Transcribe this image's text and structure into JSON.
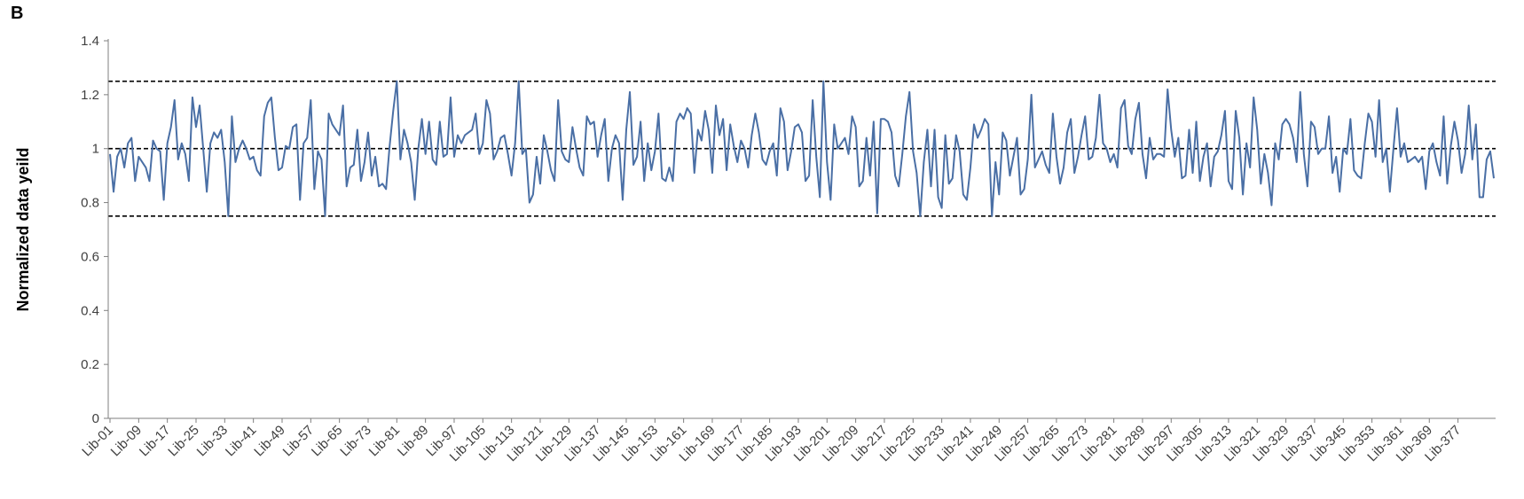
{
  "panel_label": "B",
  "chart_data": {
    "type": "line",
    "title": "",
    "xlabel": "",
    "ylabel": "Normalized data yeild",
    "ylim": [
      0,
      1.4
    ],
    "yticks": [
      0,
      0.2,
      0.4,
      0.6,
      0.8,
      1,
      1.2,
      1.4
    ],
    "ytick_labels": [
      "0",
      "0.2",
      "0.4",
      "0.6",
      "0.8",
      "1",
      "1.2",
      "1.4"
    ],
    "xtick_labels": [
      "Lib-01",
      "Lib-09",
      "Lib-17",
      "Lib-25",
      "Lib-33",
      "Lib-41",
      "Lib-49",
      "Lib-57",
      "Lib-65",
      "Lib-73",
      "Lib-81",
      "Lib-89",
      "Lib-97",
      "Lib-105",
      "Lib-113",
      "Lib-121",
      "Lib-129",
      "Lib-137",
      "Lib-145",
      "Lib-153",
      "Lib-161",
      "Lib-169",
      "Lib-177",
      "Lib-185",
      "Lib-193",
      "Lib-201",
      "Lib-209",
      "Lib-217",
      "Lib-225",
      "Lib-233",
      "Lib-241",
      "Lib-249",
      "Lib-257",
      "Lib-265",
      "Lib-273",
      "Lib-281",
      "Lib-289",
      "Lib-297",
      "Lib-305",
      "Lib-313",
      "Lib-321",
      "Lib-329",
      "Lib-337",
      "Lib-345",
      "Lib-353",
      "Lib-361",
      "Lib-369",
      "Lib-377"
    ],
    "reference_lines": [
      1.25,
      1.0,
      0.75
    ],
    "reference_style": "dashed",
    "grid": false,
    "legend": "none",
    "series_color": "#4a6fa5",
    "n_points": 384,
    "values": [
      0.98,
      0.84,
      0.97,
      1.0,
      0.93,
      1.02,
      1.04,
      0.88,
      0.97,
      0.95,
      0.93,
      0.88,
      1.03,
      1.0,
      0.99,
      0.81,
      1.02,
      1.08,
      1.18,
      0.96,
      1.02,
      0.98,
      0.88,
      1.19,
      1.08,
      1.16,
      1.0,
      0.84,
      1.02,
      1.06,
      1.04,
      1.07,
      0.95,
      0.75,
      1.12,
      0.95,
      1.0,
      1.03,
      1.0,
      0.96,
      0.97,
      0.92,
      0.9,
      1.12,
      1.17,
      1.19,
      1.04,
      0.92,
      0.93,
      1.01,
      1.0,
      1.08,
      1.09,
      0.81,
      1.02,
      1.04,
      1.18,
      0.85,
      0.99,
      0.96,
      0.75,
      1.13,
      1.09,
      1.07,
      1.05,
      1.16,
      0.86,
      0.93,
      0.94,
      1.07,
      0.88,
      0.95,
      1.06,
      0.9,
      0.97,
      0.86,
      0.87,
      0.85,
      1.01,
      1.14,
      1.25,
      0.96,
      1.07,
      1.02,
      0.95,
      0.81,
      1.0,
      1.11,
      0.98,
      1.1,
      0.96,
      0.94,
      1.1,
      0.97,
      0.98,
      1.19,
      0.97,
      1.05,
      1.02,
      1.05,
      1.06,
      1.07,
      1.13,
      0.98,
      1.02,
      1.18,
      1.13,
      0.96,
      0.99,
      1.04,
      1.05,
      0.98,
      0.9,
      1.02,
      1.25,
      0.98,
      1.0,
      0.8,
      0.83,
      0.97,
      0.87,
      1.05,
      0.99,
      0.92,
      0.88,
      1.18,
      0.99,
      0.96,
      0.95,
      1.08,
      1.0,
      0.93,
      0.9,
      1.12,
      1.09,
      1.1,
      0.97,
      1.05,
      1.11,
      0.88,
      1.0,
      1.05,
      1.02,
      0.81,
      1.07,
      1.21,
      0.94,
      0.97,
      1.1,
      0.88,
      1.02,
      0.92,
      0.99,
      1.13,
      0.89,
      0.88,
      0.93,
      0.88,
      1.1,
      1.13,
      1.11,
      1.15,
      1.13,
      0.91,
      1.07,
      1.03,
      1.14,
      1.07,
      0.91,
      1.16,
      1.05,
      1.11,
      0.92,
      1.09,
      1.01,
      0.95,
      1.03,
      1.0,
      0.93,
      1.05,
      1.13,
      1.06,
      0.96,
      0.94,
      0.99,
      1.02,
      0.9,
      1.15,
      1.1,
      0.92,
      0.99,
      1.08,
      1.09,
      1.06,
      0.88,
      0.9,
      1.18,
      0.97,
      0.82,
      1.25,
      0.95,
      0.81,
      1.09,
      1.0,
      1.02,
      1.04,
      0.98,
      1.12,
      1.08,
      0.86,
      0.88,
      1.04,
      0.9,
      1.1,
      0.76,
      1.11,
      1.11,
      1.1,
      1.06,
      0.9,
      0.86,
      0.98,
      1.12,
      1.21,
      0.99,
      0.91,
      0.75,
      0.95,
      1.07,
      0.86,
      1.07,
      0.82,
      0.78,
      1.05,
      0.87,
      0.89,
      1.05,
      0.99,
      0.83,
      0.81,
      0.93,
      1.09,
      1.04,
      1.07,
      1.11,
      1.09,
      0.75,
      0.95,
      0.83,
      1.06,
      1.03,
      0.9,
      0.97,
      1.04,
      0.83,
      0.85,
      0.96,
      1.2,
      0.93,
      0.96,
      0.99,
      0.94,
      0.91,
      1.13,
      0.97,
      0.87,
      0.93,
      1.06,
      1.11,
      0.91,
      0.97,
      1.05,
      1.12,
      0.96,
      0.97,
      1.04,
      1.2,
      1.02,
      1.0,
      0.95,
      0.98,
      0.93,
      1.15,
      1.18,
      1.01,
      0.98,
      1.11,
      1.17,
      0.98,
      0.89,
      1.04,
      0.96,
      0.98,
      0.98,
      0.97,
      1.22,
      1.07,
      0.97,
      1.04,
      0.89,
      0.9,
      1.07,
      0.91,
      1.1,
      0.88,
      0.97,
      1.02,
      0.86,
      0.97,
      0.99,
      1.05,
      1.14,
      0.88,
      0.85,
      1.14,
      1.04,
      0.83,
      1.02,
      0.93,
      1.19,
      1.07,
      0.87,
      0.98,
      0.91,
      0.79,
      1.02,
      0.96,
      1.09,
      1.11,
      1.09,
      1.04,
      0.95,
      1.21,
      0.98,
      0.86,
      1.1,
      1.08,
      0.98,
      1.0,
      1.0,
      1.12,
      0.91,
      0.97,
      0.84,
      1.0,
      0.98,
      1.11,
      0.92,
      0.9,
      0.89,
      1.02,
      1.13,
      1.1,
      0.97,
      1.18,
      0.95,
      1.0,
      0.84,
      1.0,
      1.15,
      0.97,
      1.02,
      0.95,
      0.96,
      0.97,
      0.95,
      0.97,
      0.85,
      0.99,
      1.02,
      0.95,
      0.9,
      1.12,
      0.87,
      1.01,
      1.1,
      1.03,
      0.91,
      0.98,
      1.16,
      0.96,
      1.09,
      0.82,
      0.82,
      0.96,
      0.99,
      0.89
    ]
  }
}
